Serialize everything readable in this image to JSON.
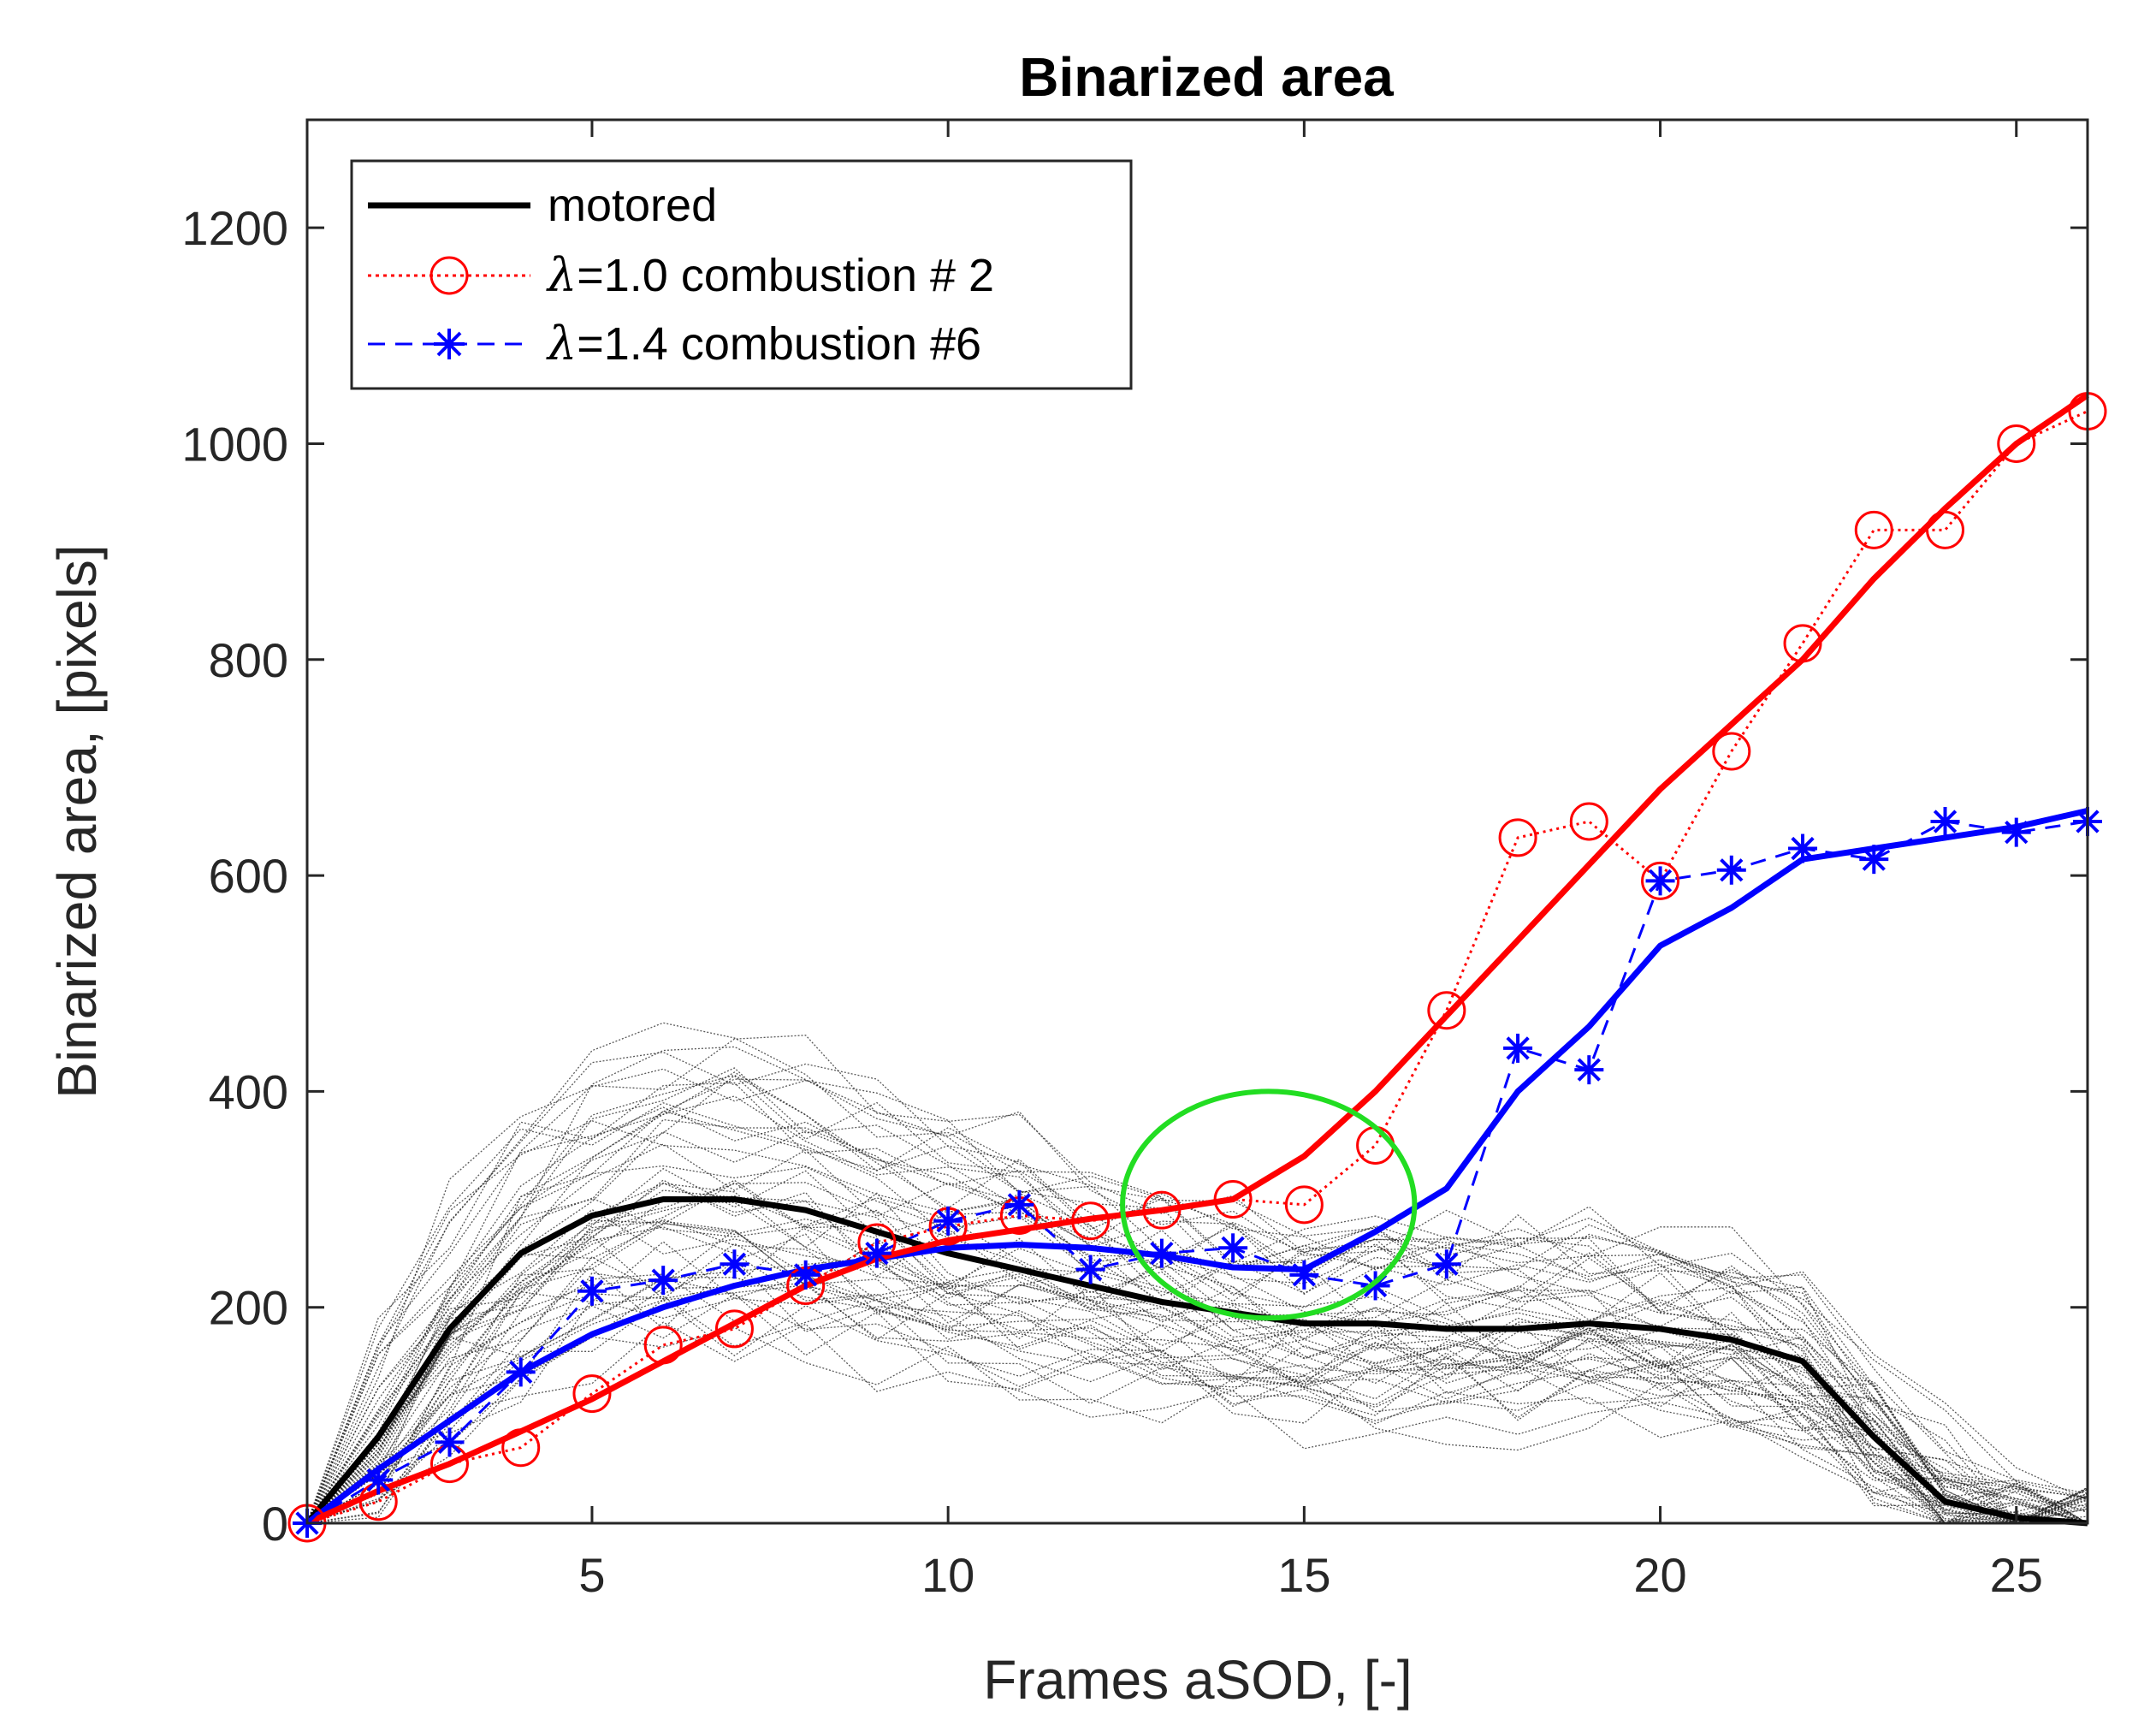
{
  "chart_data": {
    "type": "line",
    "title": "Binarized area",
    "xlabel": "Frames aSOD, [-]",
    "ylabel": "Binarized area, [pixels]",
    "xlim": [
      1,
      26
    ],
    "ylim": [
      0,
      1300
    ],
    "xticks": [
      5,
      10,
      15,
      20,
      25
    ],
    "yticks": [
      0,
      200,
      400,
      600,
      800,
      1000,
      1200
    ],
    "grid": false,
    "legend_position": "top-left",
    "colors": {
      "motored": "#000000",
      "lambda10": "#ff0000",
      "lambda14": "#0000ff",
      "highlight": "#22dd22",
      "axis": "#262626"
    },
    "series": [
      {
        "name": "motored",
        "legend_prefix": "",
        "legend_text": "motored",
        "style": "solid-thick",
        "x": [
          1,
          2,
          3,
          4,
          5,
          6,
          7,
          8,
          9,
          10,
          11,
          12,
          13,
          14,
          15,
          16,
          17,
          18,
          19,
          20,
          21,
          22,
          23,
          24,
          25,
          26
        ],
        "values": [
          0,
          80,
          180,
          250,
          285,
          300,
          300,
          290,
          270,
          250,
          235,
          220,
          205,
          195,
          185,
          185,
          180,
          180,
          185,
          180,
          170,
          150,
          80,
          20,
          5,
          0
        ]
      },
      {
        "name": "λ=1.0 combustion # 2",
        "legend_prefix": "λ",
        "legend_text": "=1.0 combustion # 2",
        "style": "dotted-circle",
        "x": [
          1,
          2,
          3,
          4,
          5,
          6,
          7,
          8,
          9,
          10,
          11,
          12,
          13,
          14,
          15,
          16,
          17,
          18,
          19,
          20,
          21,
          22,
          23,
          24,
          25,
          26
        ],
        "values": [
          0,
          20,
          55,
          70,
          120,
          165,
          180,
          220,
          260,
          275,
          285,
          280,
          290,
          300,
          295,
          350,
          475,
          635,
          650,
          595,
          715,
          815,
          920,
          920,
          1000,
          1030
        ],
        "smooth_values": [
          0,
          30,
          55,
          85,
          115,
          150,
          185,
          220,
          245,
          262,
          272,
          282,
          290,
          300,
          340,
          400,
          470,
          540,
          610,
          680,
          740,
          800,
          875,
          940,
          1000,
          1045
        ]
      },
      {
        "name": "λ=1.4 combustion #6",
        "legend_prefix": "λ",
        "legend_text": "=1.4 combustion #6",
        "style": "dashed-asterisk",
        "x": [
          1,
          2,
          3,
          4,
          5,
          6,
          7,
          8,
          9,
          10,
          11,
          12,
          13,
          14,
          15,
          16,
          17,
          18,
          19,
          20,
          21,
          22,
          23,
          24,
          25,
          26
        ],
        "values": [
          0,
          40,
          75,
          140,
          215,
          225,
          240,
          230,
          250,
          280,
          295,
          235,
          250,
          255,
          230,
          220,
          240,
          440,
          420,
          595,
          605,
          625,
          615,
          650,
          640,
          650
        ],
        "smooth_values": [
          0,
          50,
          95,
          140,
          175,
          200,
          220,
          235,
          245,
          255,
          258,
          255,
          248,
          237,
          235,
          270,
          310,
          400,
          460,
          535,
          570,
          615,
          625,
          635,
          645,
          660
        ]
      }
    ],
    "highlight_ellipse": {
      "center": [
        14.5,
        295
      ],
      "radius_x": 2.05,
      "radius_y": 105
    }
  }
}
